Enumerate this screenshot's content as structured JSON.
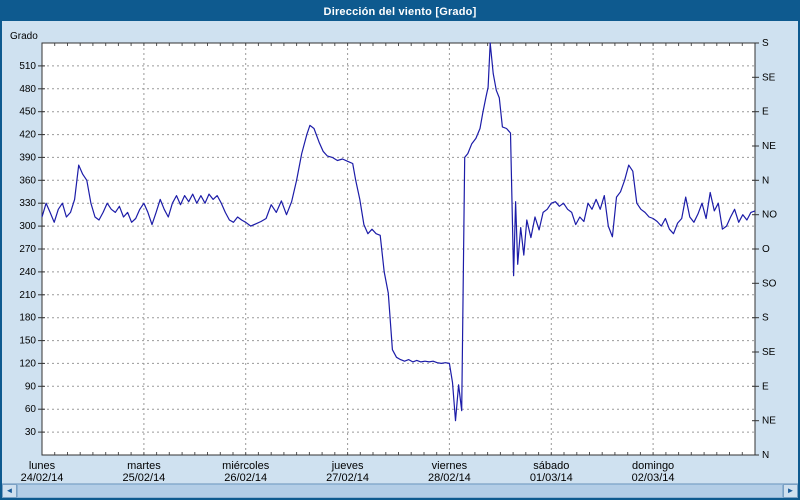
{
  "title": "Dirección del viento [Grado]",
  "scrollbar": {
    "left_arrow": "◄",
    "right_arrow": "►"
  },
  "colors": {
    "titlebar": "#0e5a8f",
    "background": "#cfe1f0",
    "plot_background": "#ffffff",
    "plot_border": "#333333",
    "grid": "#9a9a9a",
    "line": "#1c1ca8"
  },
  "chart_data": {
    "type": "line",
    "title": "Dirección del viento [Grado]",
    "ylabel": "Grado",
    "xlabel": "",
    "ylim": [
      0,
      540
    ],
    "grid": true,
    "y_ticks": [
      30,
      60,
      90,
      120,
      150,
      180,
      210,
      240,
      270,
      300,
      330,
      360,
      390,
      420,
      450,
      480,
      510
    ],
    "right_axis": [
      {
        "value": 540,
        "label": "S"
      },
      {
        "value": 495,
        "label": "SE"
      },
      {
        "value": 450,
        "label": "E"
      },
      {
        "value": 405,
        "label": "NE"
      },
      {
        "value": 360,
        "label": "N"
      },
      {
        "value": 315,
        "label": "NO"
      },
      {
        "value": 270,
        "label": "O"
      },
      {
        "value": 225,
        "label": "SO"
      },
      {
        "value": 180,
        "label": "S"
      },
      {
        "value": 135,
        "label": "SE"
      },
      {
        "value": 90,
        "label": "E"
      },
      {
        "value": 45,
        "label": "NE"
      },
      {
        "value": 0,
        "label": "N"
      }
    ],
    "x_categories": [
      {
        "day": "lunes",
        "date": "24/02/14"
      },
      {
        "day": "martes",
        "date": "25/02/14"
      },
      {
        "day": "miércoles",
        "date": "26/02/14"
      },
      {
        "day": "jueves",
        "date": "27/02/14"
      },
      {
        "day": "viernes",
        "date": "28/02/14"
      },
      {
        "day": "sábado",
        "date": "01/03/14"
      },
      {
        "day": "domingo",
        "date": "02/03/14"
      }
    ],
    "line_color": "#1c1ca8",
    "series": [
      {
        "name": "Dirección del viento",
        "unit": "Grado",
        "points": [
          [
            0.0,
            312
          ],
          [
            0.04,
            330
          ],
          [
            0.08,
            318
          ],
          [
            0.12,
            305
          ],
          [
            0.16,
            322
          ],
          [
            0.2,
            330
          ],
          [
            0.24,
            312
          ],
          [
            0.28,
            318
          ],
          [
            0.32,
            335
          ],
          [
            0.36,
            380
          ],
          [
            0.4,
            368
          ],
          [
            0.44,
            360
          ],
          [
            0.48,
            330
          ],
          [
            0.52,
            312
          ],
          [
            0.56,
            308
          ],
          [
            0.6,
            318
          ],
          [
            0.64,
            330
          ],
          [
            0.68,
            322
          ],
          [
            0.72,
            318
          ],
          [
            0.76,
            326
          ],
          [
            0.8,
            312
          ],
          [
            0.84,
            318
          ],
          [
            0.88,
            305
          ],
          [
            0.92,
            310
          ],
          [
            0.96,
            322
          ],
          [
            1.0,
            330
          ],
          [
            1.04,
            318
          ],
          [
            1.08,
            302
          ],
          [
            1.12,
            318
          ],
          [
            1.16,
            335
          ],
          [
            1.2,
            322
          ],
          [
            1.24,
            312
          ],
          [
            1.28,
            330
          ],
          [
            1.32,
            340
          ],
          [
            1.36,
            328
          ],
          [
            1.4,
            340
          ],
          [
            1.44,
            332
          ],
          [
            1.48,
            342
          ],
          [
            1.52,
            330
          ],
          [
            1.56,
            340
          ],
          [
            1.6,
            330
          ],
          [
            1.64,
            342
          ],
          [
            1.68,
            335
          ],
          [
            1.72,
            340
          ],
          [
            1.76,
            330
          ],
          [
            1.8,
            318
          ],
          [
            1.84,
            308
          ],
          [
            1.88,
            305
          ],
          [
            1.92,
            312
          ],
          [
            1.96,
            308
          ],
          [
            2.0,
            305
          ],
          [
            2.05,
            300
          ],
          [
            2.1,
            303
          ],
          [
            2.15,
            306
          ],
          [
            2.2,
            310
          ],
          [
            2.25,
            328
          ],
          [
            2.3,
            318
          ],
          [
            2.35,
            333
          ],
          [
            2.4,
            315
          ],
          [
            2.45,
            332
          ],
          [
            2.5,
            360
          ],
          [
            2.55,
            395
          ],
          [
            2.6,
            420
          ],
          [
            2.63,
            432
          ],
          [
            2.67,
            428
          ],
          [
            2.72,
            410
          ],
          [
            2.76,
            398
          ],
          [
            2.8,
            392
          ],
          [
            2.85,
            390
          ],
          [
            2.9,
            386
          ],
          [
            2.95,
            388
          ],
          [
            3.0,
            385
          ],
          [
            3.05,
            382
          ],
          [
            3.08,
            360
          ],
          [
            3.12,
            335
          ],
          [
            3.16,
            302
          ],
          [
            3.2,
            290
          ],
          [
            3.24,
            296
          ],
          [
            3.28,
            290
          ],
          [
            3.32,
            288
          ],
          [
            3.36,
            240
          ],
          [
            3.4,
            212
          ],
          [
            3.44,
            138
          ],
          [
            3.48,
            128
          ],
          [
            3.52,
            125
          ],
          [
            3.56,
            123
          ],
          [
            3.6,
            125
          ],
          [
            3.64,
            122
          ],
          [
            3.68,
            124
          ],
          [
            3.72,
            122
          ],
          [
            3.76,
            123
          ],
          [
            3.8,
            122
          ],
          [
            3.84,
            123
          ],
          [
            3.88,
            121
          ],
          [
            3.92,
            120
          ],
          [
            3.96,
            121
          ],
          [
            4.0,
            120
          ],
          [
            4.03,
            95
          ],
          [
            4.06,
            45
          ],
          [
            4.09,
            92
          ],
          [
            4.12,
            58
          ],
          [
            4.15,
            390
          ],
          [
            4.18,
            395
          ],
          [
            4.22,
            408
          ],
          [
            4.26,
            415
          ],
          [
            4.3,
            428
          ],
          [
            4.33,
            450
          ],
          [
            4.36,
            470
          ],
          [
            4.38,
            482
          ],
          [
            4.4,
            545
          ],
          [
            4.43,
            500
          ],
          [
            4.46,
            478
          ],
          [
            4.49,
            468
          ],
          [
            4.52,
            430
          ],
          [
            4.56,
            428
          ],
          [
            4.6,
            422
          ],
          [
            4.63,
            235
          ],
          [
            4.65,
            332
          ],
          [
            4.67,
            250
          ],
          [
            4.7,
            298
          ],
          [
            4.73,
            262
          ],
          [
            4.76,
            308
          ],
          [
            4.8,
            285
          ],
          [
            4.84,
            312
          ],
          [
            4.88,
            295
          ],
          [
            4.92,
            318
          ],
          [
            4.96,
            322
          ],
          [
            5.0,
            330
          ],
          [
            5.04,
            332
          ],
          [
            5.08,
            326
          ],
          [
            5.12,
            330
          ],
          [
            5.16,
            322
          ],
          [
            5.2,
            318
          ],
          [
            5.24,
            302
          ],
          [
            5.28,
            312
          ],
          [
            5.32,
            306
          ],
          [
            5.36,
            330
          ],
          [
            5.4,
            322
          ],
          [
            5.44,
            335
          ],
          [
            5.48,
            322
          ],
          [
            5.52,
            340
          ],
          [
            5.56,
            300
          ],
          [
            5.6,
            286
          ],
          [
            5.64,
            338
          ],
          [
            5.68,
            345
          ],
          [
            5.72,
            360
          ],
          [
            5.76,
            380
          ],
          [
            5.8,
            372
          ],
          [
            5.84,
            330
          ],
          [
            5.88,
            322
          ],
          [
            5.92,
            318
          ],
          [
            5.96,
            312
          ],
          [
            6.0,
            310
          ],
          [
            6.04,
            306
          ],
          [
            6.08,
            300
          ],
          [
            6.12,
            310
          ],
          [
            6.16,
            296
          ],
          [
            6.2,
            290
          ],
          [
            6.24,
            304
          ],
          [
            6.28,
            310
          ],
          [
            6.32,
            338
          ],
          [
            6.36,
            312
          ],
          [
            6.4,
            305
          ],
          [
            6.44,
            316
          ],
          [
            6.48,
            330
          ],
          [
            6.52,
            310
          ],
          [
            6.56,
            344
          ],
          [
            6.6,
            320
          ],
          [
            6.64,
            330
          ],
          [
            6.68,
            296
          ],
          [
            6.72,
            300
          ],
          [
            6.76,
            312
          ],
          [
            6.8,
            322
          ],
          [
            6.84,
            305
          ],
          [
            6.88,
            315
          ],
          [
            6.92,
            308
          ],
          [
            6.96,
            318
          ],
          [
            7.0,
            320
          ]
        ]
      }
    ]
  }
}
